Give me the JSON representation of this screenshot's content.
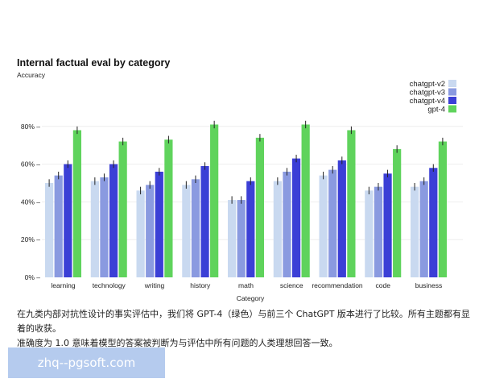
{
  "chart_data": {
    "type": "bar",
    "title": "Internal factual eval by category",
    "ylabel": "Accuracy",
    "xlabel": "Category",
    "ylim": [
      0,
      1
    ],
    "yticks": [
      0,
      0.2,
      0.4,
      0.6,
      0.8
    ],
    "yticklabels": [
      "0% –",
      "20% –",
      "40% –",
      "60% –",
      "80% –"
    ],
    "grid": true,
    "legend_position": "top-right",
    "error_bars": true,
    "categories": [
      "learning",
      "technology",
      "writing",
      "history",
      "math",
      "science",
      "recommendation",
      "code",
      "business"
    ],
    "series": [
      {
        "name": "chatgpt-v2",
        "color": "#c9d9f0",
        "values": [
          0.5,
          0.51,
          0.46,
          0.49,
          0.41,
          0.51,
          0.54,
          0.46,
          0.48
        ],
        "errors": [
          0.02,
          0.02,
          0.02,
          0.02,
          0.02,
          0.02,
          0.02,
          0.02,
          0.02
        ]
      },
      {
        "name": "chatgpt-v3",
        "color": "#8a9ae0",
        "values": [
          0.54,
          0.53,
          0.49,
          0.52,
          0.41,
          0.56,
          0.57,
          0.48,
          0.51
        ],
        "errors": [
          0.02,
          0.02,
          0.02,
          0.02,
          0.02,
          0.02,
          0.02,
          0.02,
          0.02
        ]
      },
      {
        "name": "chatgpt-v4",
        "color": "#3b3fd6",
        "values": [
          0.6,
          0.6,
          0.56,
          0.59,
          0.51,
          0.63,
          0.62,
          0.55,
          0.58
        ],
        "errors": [
          0.02,
          0.02,
          0.02,
          0.02,
          0.02,
          0.02,
          0.02,
          0.02,
          0.02
        ]
      },
      {
        "name": "gpt-4",
        "color": "#5fd35c",
        "values": [
          0.78,
          0.72,
          0.73,
          0.81,
          0.74,
          0.81,
          0.78,
          0.68,
          0.72
        ],
        "errors": [
          0.02,
          0.02,
          0.02,
          0.02,
          0.02,
          0.02,
          0.02,
          0.02,
          0.02
        ]
      }
    ]
  },
  "caption": {
    "line1": "在九类内部对抗性设计的事实评估中，我们将 GPT-4（绿色）与前三个 ChatGPT 版本进行了比较。所有主题都有显着的收获。",
    "line2": "准确度为 1.0 意味着模型的答案被判断为与评估中所有问题的人类理想回答一致。"
  },
  "watermark": {
    "text": "zhq--pgsoft.com",
    "color": "#b5cbee"
  }
}
